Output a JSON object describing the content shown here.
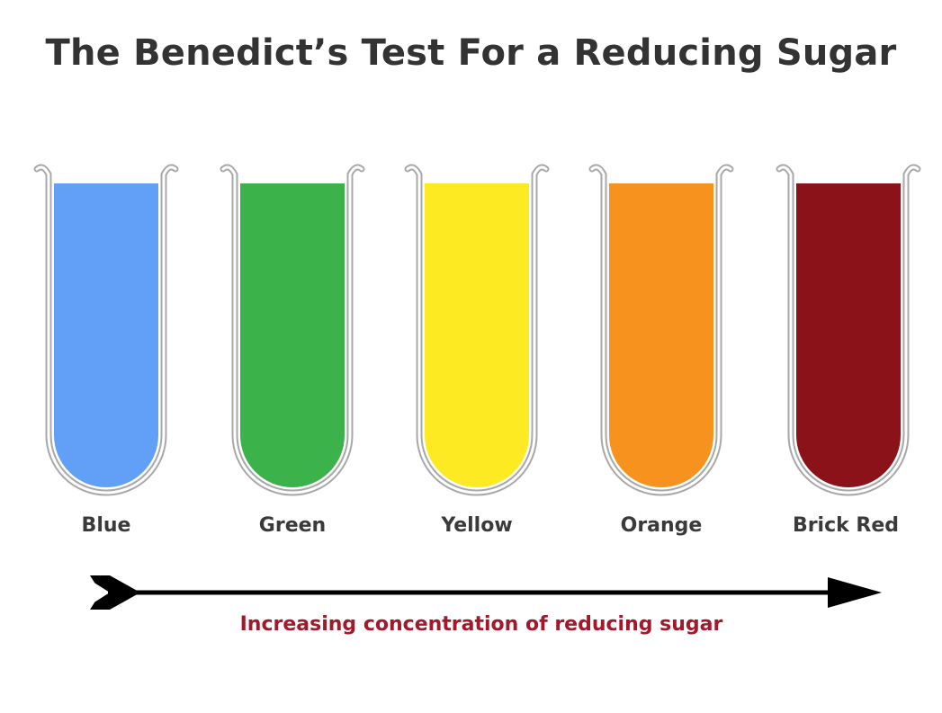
{
  "title": "The Benedict’s Test For a Reducing Sugar",
  "tubes": [
    {
      "label": "Blue",
      "color": "#62A0F8"
    },
    {
      "label": "Green",
      "color": "#3BB24A"
    },
    {
      "label": "Yellow",
      "color": "#FDEA22"
    },
    {
      "label": "Orange",
      "color": "#F7921F"
    },
    {
      "label": "Brick Red",
      "color": "#8B1219"
    }
  ],
  "arrow": {
    "caption": "Increasing concentration of reducing sugar",
    "caption_color": "#A3182A",
    "arrow_color": "#000000"
  }
}
